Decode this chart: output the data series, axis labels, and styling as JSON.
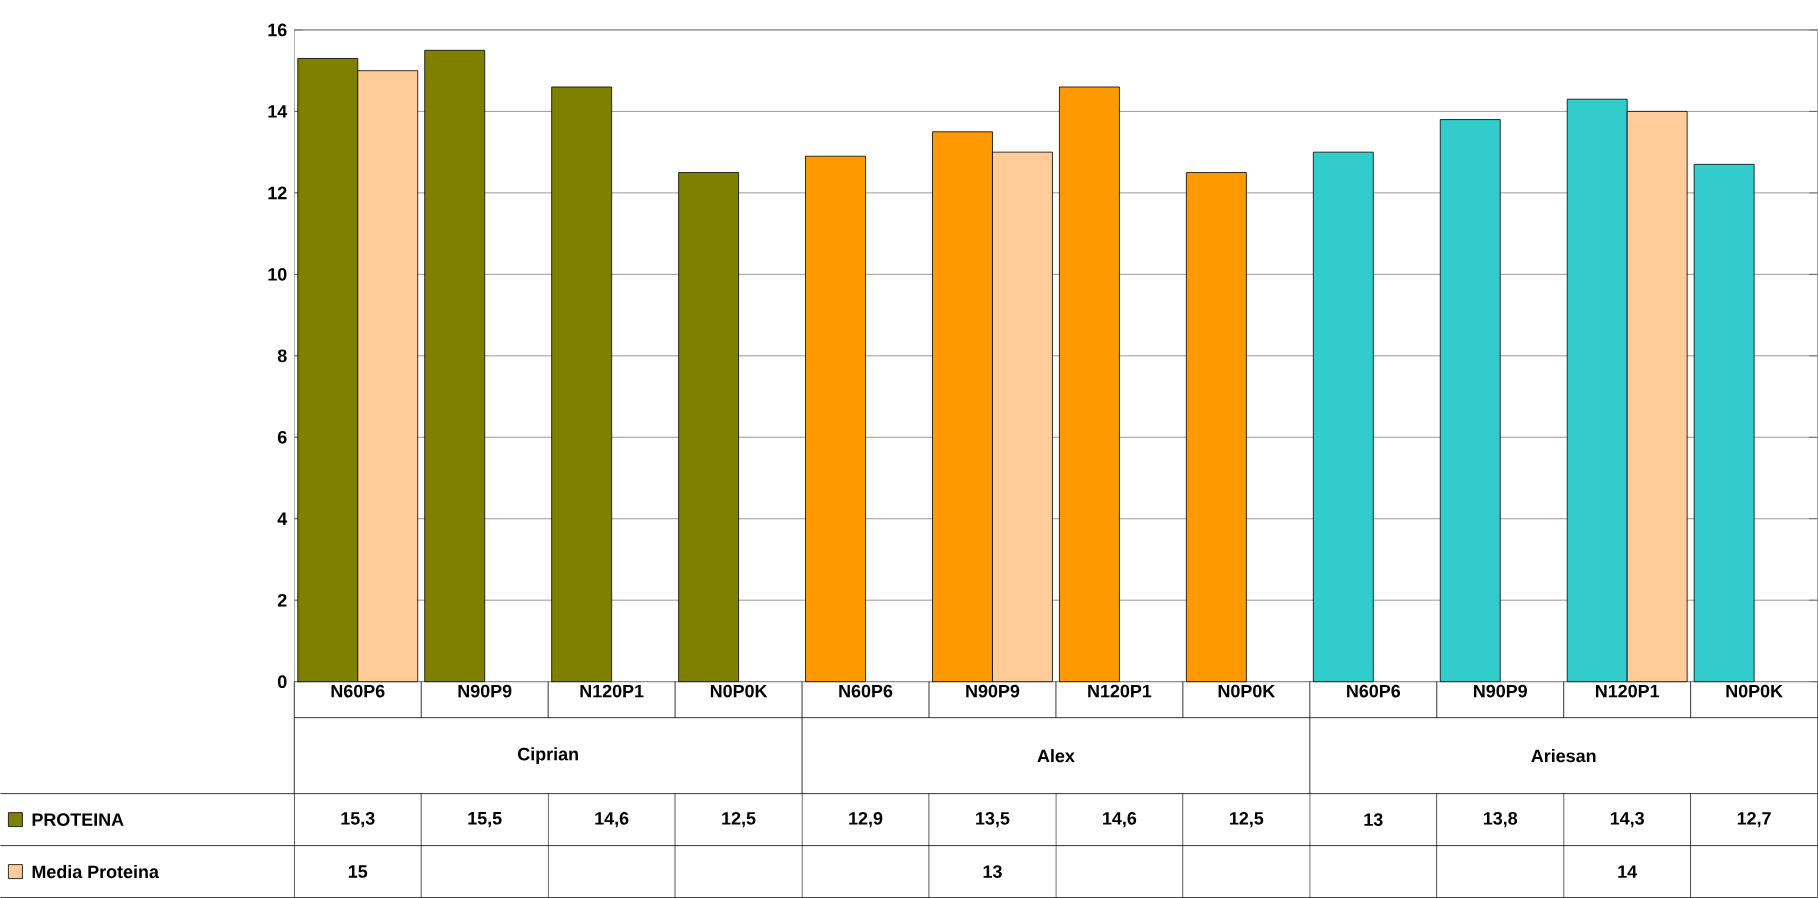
{
  "chart_data": {
    "type": "bar",
    "categories": [
      "N60P6",
      "N90P9",
      "N120P1",
      "N0P0K",
      "N60P6",
      "N90P9",
      "N120P1",
      "N0P0K",
      "N60P6",
      "N90P9",
      "N120P1",
      "N0P0K"
    ],
    "series": [
      {
        "name": "PROTEINA",
        "colors": [
          "#808000",
          "#808000",
          "#808000",
          "#808000",
          "#ff9900",
          "#ff9900",
          "#ff9900",
          "#ff9900",
          "#33cccc",
          "#33cccc",
          "#33cccc",
          "#33cccc"
        ],
        "values": [
          15.3,
          15.5,
          14.6,
          12.5,
          12.9,
          13.5,
          14.6,
          12.5,
          13,
          13.8,
          14.3,
          12.7
        ],
        "value_labels": [
          "15,3",
          "15,5",
          "14,6",
          "12,5",
          "12,9",
          "13,5",
          "14,6",
          "12,5",
          "13",
          "13,8",
          "14,3",
          "12,7"
        ]
      },
      {
        "name": "Media Proteina",
        "color": "#ffcc99",
        "values": [
          15,
          null,
          null,
          null,
          null,
          13,
          null,
          null,
          null,
          null,
          14,
          null
        ],
        "value_labels": [
          "15",
          null,
          null,
          null,
          null,
          "13",
          null,
          null,
          null,
          null,
          "14",
          null
        ]
      }
    ],
    "annotations": [
      "Ciprian",
      "Alex",
      "Ariesan"
    ],
    "ylim": [
      0,
      16
    ],
    "yticks": [
      0,
      2,
      4,
      6,
      8,
      10,
      12,
      14,
      16
    ],
    "grid": "y",
    "legend": "bottom left"
  }
}
